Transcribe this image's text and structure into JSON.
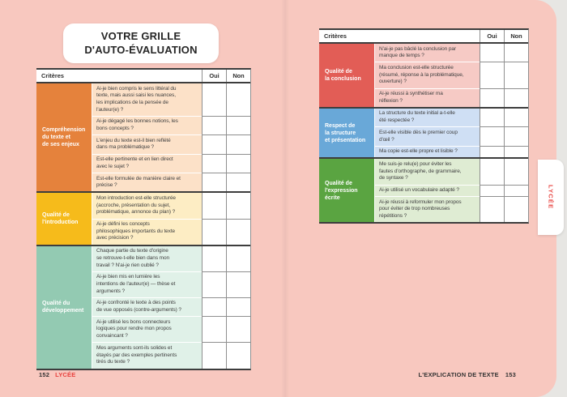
{
  "colors": {
    "page_bg": "#f8c8bf",
    "outer_bg": "#e7e6e3",
    "accent_red": "#e8413d",
    "dark_line": "#3d3d3d",
    "gray_line": "#8f8f8f"
  },
  "title": "VOTRE GRILLE\nD'AUTO-ÉVALUATION",
  "tab_label": "LYCÉE",
  "table_header": {
    "criteria": "Critères",
    "yes": "Oui",
    "no": "Non"
  },
  "footer_left": {
    "page_number": "152",
    "section_label": "LYCÉE"
  },
  "footer_right": {
    "chapter_label": "L'EXPLICATION DE TEXTE",
    "page_number": "153"
  },
  "left_table": {
    "groups": [
      {
        "label": "Compréhension\ndu texte et\nde ses enjeux",
        "color": "#e5823c",
        "cell_color": "#fce1c8",
        "questions": [
          "Ai-je bien compris le sens littéral du\ntexte, mais aussi saisi les nuances,\nles implications de la pensée de\nl'auteur(e) ?",
          "Ai-je dégagé les bonnes notions, les\nbons concepts ?",
          "L'enjeu du texte est-il bien reflété\ndans ma problématique ?",
          "Est-elle pertinente et en lien direct\navec le sujet ?",
          "Est-elle formulée de manière claire et\nprécise ?"
        ]
      },
      {
        "label": "Qualité de\nl'introduction",
        "color": "#f6bb1b",
        "cell_color": "#fdedc4",
        "questions": [
          "Mon introduction est-elle structurée\n(accroche, présentation du sujet,\nproblématique, annonce du plan) ?",
          "Ai-je défini les concepts\nphilosophiques importants du texte\navec précision ?"
        ]
      },
      {
        "label": "Qualité du\ndéveloppement",
        "color": "#93cab2",
        "cell_color": "#e0f1e8",
        "questions": [
          "Chaque partie du texte d'origine\nse retrouve-t-elle bien dans mon\ntravail ? N'ai-je rien oublié ?",
          "Ai-je bien mis en lumière les\nintentions de l'auteur(e) — thèse et\narguments ?",
          "Ai-je confronté le texte à des points\nde vue opposés (contre-arguments) ?",
          "Ai-je utilisé les bons connecteurs\nlogiques pour rendre mon propos\nconvaincant ?",
          "Mes arguments sont-ils solides et\nétayés par des exemples pertinents\ntirés du texte ?"
        ]
      }
    ]
  },
  "right_table": {
    "groups": [
      {
        "label": "Qualité de\nla conclusion",
        "color": "#e25d56",
        "cell_color": "#f6cac5",
        "questions": [
          "N'ai-je pas bâclé la conclusion par\nmanque de temps ?",
          "Ma conclusion est-elle structurée\n(résumé, réponse à la problématique,\nouverture) ?",
          "Ai-je réussi à synthétiser ma\nréflexion ?"
        ]
      },
      {
        "label": "Respect de\nla structure\net présentation",
        "color": "#69a8d8",
        "cell_color": "#cfdff4",
        "questions": [
          "La structure du texte initial a-t-elle\nété respectée ?",
          "Est-elle visible dès le premier coup\nd'œil ?",
          "Ma copie est-elle propre et lisible ?"
        ]
      },
      {
        "label": "Qualité de\nl'expression\nécrite",
        "color": "#5aa441",
        "cell_color": "#dfecd3",
        "questions": [
          "Me suis-je relu(e) pour éviter les\nfautes d'orthographe, de grammaire,\nde syntaxe ?",
          "Ai-je utilisé un vocabulaire adapté ?",
          "Ai-je réussi à reformuler mon propos\npour éviter de trop nombreuses\nrépétitions ?"
        ]
      }
    ]
  }
}
